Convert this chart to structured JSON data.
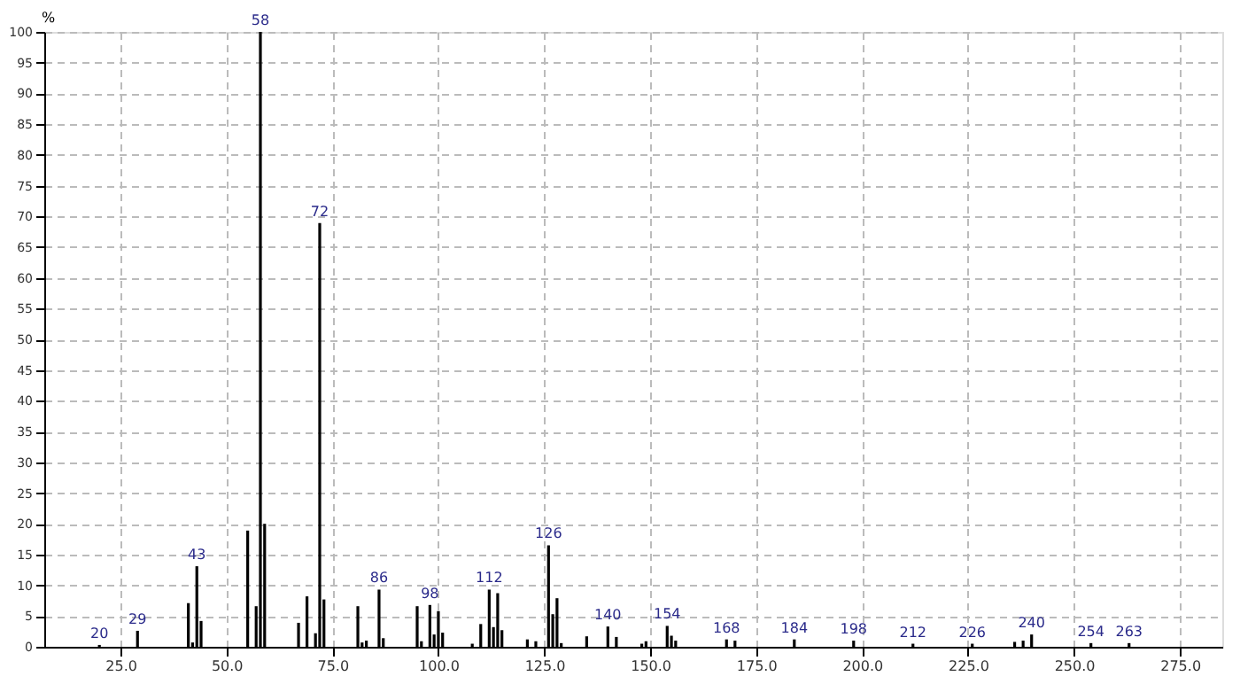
{
  "chart_data": {
    "type": "bar",
    "ylabel": "%",
    "x": [
      20,
      29,
      41,
      42,
      43,
      44,
      55,
      57,
      58,
      59,
      67,
      69,
      71,
      72,
      73,
      81,
      82,
      83,
      86,
      87,
      95,
      96,
      98,
      99,
      100,
      101,
      108,
      110,
      112,
      113,
      114,
      115,
      121,
      123,
      126,
      127,
      128,
      129,
      135,
      140,
      142,
      148,
      149,
      154,
      155,
      156,
      168,
      170,
      184,
      198,
      212,
      226,
      236,
      238,
      240,
      254,
      263
    ],
    "values": [
      0.3,
      2.6,
      7.1,
      0.7,
      13.1,
      4.2,
      18.9,
      6.6,
      100,
      20,
      3.9,
      8.2,
      2.2,
      68.9,
      7.7,
      6.6,
      0.7,
      1,
      9.3,
      1.4,
      6.6,
      0.9,
      6.8,
      2,
      5.8,
      2.3,
      0.5,
      3.7,
      9.3,
      3.2,
      8.7,
      2.7,
      1.2,
      0.9,
      16.5,
      5.3,
      7.9,
      0.6,
      1.7,
      3.3,
      1.6,
      0.5,
      0.9,
      3.4,
      1.8,
      1,
      1.2,
      1,
      1.2,
      1,
      0.5,
      0.5,
      0.8,
      1,
      2,
      0.6,
      0.6
    ],
    "color": "#000000",
    "annotations": [
      {
        "text": "20",
        "x": 20,
        "y": 0.3
      },
      {
        "text": "29",
        "x": 29,
        "y": 2.6
      },
      {
        "text": "43",
        "x": 43,
        "y": 13.1
      },
      {
        "text": "58",
        "x": 58,
        "y": 100
      },
      {
        "text": "72",
        "x": 72,
        "y": 68.9
      },
      {
        "text": "86",
        "x": 86,
        "y": 9.3
      },
      {
        "text": "98",
        "x": 98,
        "y": 6.8
      },
      {
        "text": "112",
        "x": 112,
        "y": 9.3
      },
      {
        "text": "126",
        "x": 126,
        "y": 16.5
      },
      {
        "text": "140",
        "x": 140,
        "y": 3.3
      },
      {
        "text": "154",
        "x": 154,
        "y": 3.4
      },
      {
        "text": "168",
        "x": 168,
        "y": 1.2
      },
      {
        "text": "184",
        "x": 184,
        "y": 1.2
      },
      {
        "text": "198",
        "x": 198,
        "y": 1
      },
      {
        "text": "212",
        "x": 212,
        "y": 0.5
      },
      {
        "text": "226",
        "x": 226,
        "y": 0.5
      },
      {
        "text": "240",
        "x": 240,
        "y": 2
      },
      {
        "text": "254",
        "x": 254,
        "y": 0.6
      },
      {
        "text": "263",
        "x": 263,
        "y": 0.6
      }
    ],
    "xlim": [
      7,
      285
    ],
    "xticks": [
      {
        "value": 25,
        "label": "25.0"
      },
      {
        "value": 50,
        "label": "50.0"
      },
      {
        "value": 75,
        "label": "75.0"
      },
      {
        "value": 100,
        "label": "100.0"
      },
      {
        "value": 125,
        "label": "125.0"
      },
      {
        "value": 150,
        "label": "150.0"
      },
      {
        "value": 175,
        "label": "175.0"
      },
      {
        "value": 200,
        "label": "200.0"
      },
      {
        "value": 225,
        "label": "225.0"
      },
      {
        "value": 250,
        "label": "250.0"
      },
      {
        "value": 275,
        "label": "275.0"
      }
    ],
    "ylim": [
      0,
      100
    ],
    "yticks": [
      0,
      5,
      10,
      15,
      20,
      25,
      30,
      35,
      40,
      45,
      50,
      55,
      60,
      65,
      70,
      75,
      80,
      85,
      90,
      95,
      100
    ],
    "grid": true
  }
}
